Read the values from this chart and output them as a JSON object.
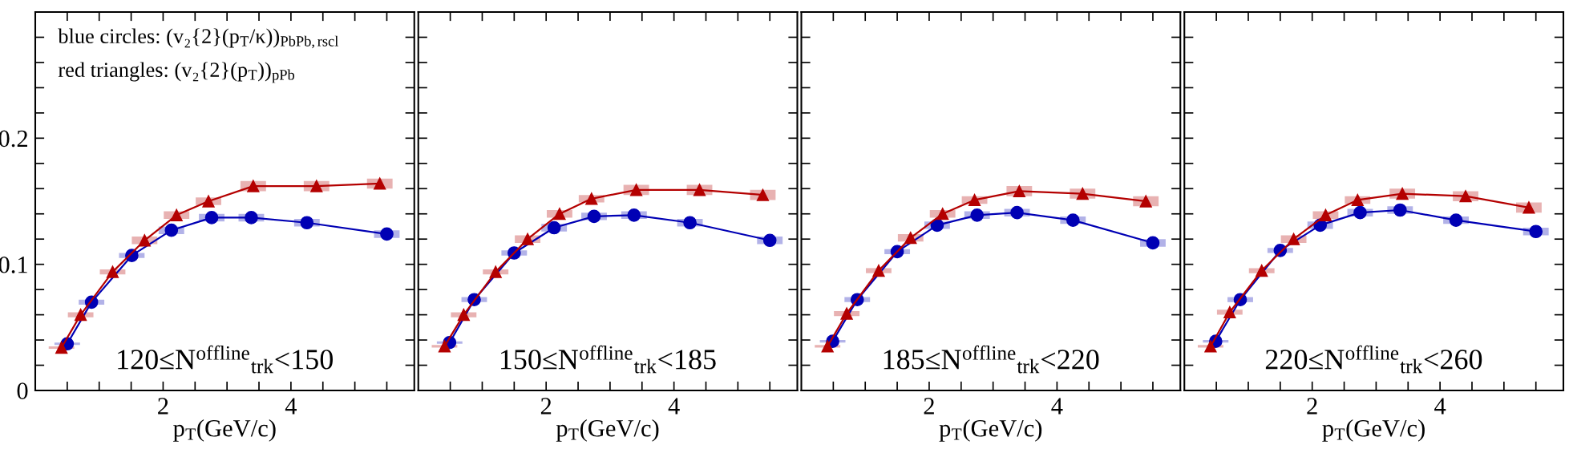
{
  "chart_data": [
    {
      "type": "line",
      "xlabel": "p$_{T}$(GeV/c)",
      "xlim": [
        0,
        5.93
      ],
      "ylim": [
        0,
        0.3
      ],
      "xticks": [
        {
          "value": 0.5,
          "label": null
        },
        {
          "value": 1,
          "label": null
        },
        {
          "value": 1.5,
          "label": null
        },
        2,
        {
          "value": 2.5,
          "label": null
        },
        {
          "value": 3,
          "label": null
        },
        {
          "value": 3.5,
          "label": null
        },
        4,
        {
          "value": 4.5,
          "label": null
        },
        {
          "value": 5,
          "label": null
        },
        {
          "value": 5.5,
          "label": null
        }
      ],
      "yticks": [
        0,
        {
          "value": 0.02,
          "label": null
        },
        {
          "value": 0.04,
          "label": null
        },
        {
          "value": 0.06,
          "label": null
        },
        {
          "value": 0.08,
          "label": null
        },
        0.1,
        {
          "value": 0.12,
          "label": null
        },
        {
          "value": 0.14,
          "label": null
        },
        {
          "value": 0.16,
          "label": null
        },
        {
          "value": 0.18,
          "label": null
        },
        0.2,
        {
          "value": 0.22,
          "label": null
        },
        {
          "value": 0.24,
          "label": null
        },
        {
          "value": 0.26,
          "label": null
        },
        {
          "value": 0.28,
          "label": null
        }
      ],
      "annotations": [
        "blue circles: (v₂{2}(p$_{T}$/κ))$_{PbPb,rscl}$",
        "red triangles: (v₂{2}(p$_{T}$))$_{pPb}$",
        "120≤N$^{offline}$$_{trk}$<150"
      ],
      "series": [
        {
          "color": "#0000b4",
          "marker": "circle",
          "x": [
            0.5,
            0.88,
            1.51,
            2.13,
            2.76,
            3.38,
            4.25,
            5.5
          ],
          "values": [
            0.037,
            0.07,
            0.107,
            0.127,
            0.137,
            0.137,
            0.133,
            0.124
          ],
          "errors": [
            0.001,
            0.002,
            0.002,
            0.003,
            0.003,
            0.003,
            0.003,
            0.003
          ]
        },
        {
          "color": "#b40000",
          "marker": "triangle",
          "x": [
            0.41,
            0.71,
            1.21,
            1.71,
            2.21,
            2.71,
            3.41,
            4.4,
            5.39
          ],
          "values": [
            0.034,
            0.06,
            0.094,
            0.119,
            0.139,
            0.15,
            0.162,
            0.162,
            0.164
          ],
          "errors": [
            0.001,
            0.002,
            0.002,
            0.003,
            0.003,
            0.003,
            0.004,
            0.004,
            0.004
          ]
        }
      ]
    },
    {
      "type": "line",
      "xlabel": "p$_{T}$(GeV/c)",
      "xlim": [
        0,
        5.93
      ],
      "ylim": [
        0,
        0.3
      ],
      "tick_labels": "x",
      "xticks": [
        {
          "value": 0.5,
          "label": null
        },
        {
          "value": 1,
          "label": null
        },
        {
          "value": 1.5,
          "label": null
        },
        2,
        {
          "value": 2.5,
          "label": null
        },
        {
          "value": 3,
          "label": null
        },
        {
          "value": 3.5,
          "label": null
        },
        4,
        {
          "value": 4.5,
          "label": null
        },
        {
          "value": 5,
          "label": null
        },
        {
          "value": 5.5,
          "label": null
        }
      ],
      "yticks": [
        0,
        {
          "value": 0.02,
          "label": null
        },
        {
          "value": 0.04,
          "label": null
        },
        {
          "value": 0.06,
          "label": null
        },
        {
          "value": 0.08,
          "label": null
        },
        0.1,
        {
          "value": 0.12,
          "label": null
        },
        {
          "value": 0.14,
          "label": null
        },
        {
          "value": 0.16,
          "label": null
        },
        {
          "value": 0.18,
          "label": null
        },
        0.2,
        {
          "value": 0.22,
          "label": null
        },
        {
          "value": 0.24,
          "label": null
        },
        {
          "value": 0.26,
          "label": null
        },
        {
          "value": 0.28,
          "label": null
        }
      ],
      "annotations": [
        "150≤N$^{offline}$$_{trk}$<185"
      ],
      "series": [
        {
          "color": "#0000b4",
          "marker": "circle",
          "x": [
            0.49,
            0.875,
            1.5,
            2.125,
            2.75,
            3.375,
            4.25,
            5.5
          ],
          "values": [
            0.038,
            0.072,
            0.109,
            0.129,
            0.138,
            0.139,
            0.133,
            0.119
          ],
          "errors": [
            0.001,
            0.002,
            0.002,
            0.003,
            0.003,
            0.003,
            0.003,
            0.003
          ]
        },
        {
          "color": "#b40000",
          "marker": "triangle",
          "x": [
            0.41,
            0.71,
            1.21,
            1.71,
            2.21,
            2.71,
            3.41,
            4.4,
            5.39
          ],
          "values": [
            0.035,
            0.06,
            0.094,
            0.12,
            0.14,
            0.152,
            0.159,
            0.159,
            0.155
          ],
          "errors": [
            0.001,
            0.002,
            0.002,
            0.003,
            0.003,
            0.003,
            0.004,
            0.004,
            0.004
          ]
        }
      ]
    },
    {
      "type": "line",
      "xlabel": "p$_{T}$(GeV/c)",
      "xlim": [
        0,
        5.93
      ],
      "ylim": [
        0,
        0.3
      ],
      "tick_labels": "x",
      "xticks": [
        {
          "value": 0.5,
          "label": null
        },
        {
          "value": 1,
          "label": null
        },
        {
          "value": 1.5,
          "label": null
        },
        2,
        {
          "value": 2.5,
          "label": null
        },
        {
          "value": 3,
          "label": null
        },
        {
          "value": 3.5,
          "label": null
        },
        4,
        {
          "value": 4.5,
          "label": null
        },
        {
          "value": 5,
          "label": null
        },
        {
          "value": 5.5,
          "label": null
        }
      ],
      "yticks": [
        0,
        {
          "value": 0.02,
          "label": null
        },
        {
          "value": 0.04,
          "label": null
        },
        {
          "value": 0.06,
          "label": null
        },
        {
          "value": 0.08,
          "label": null
        },
        0.1,
        {
          "value": 0.12,
          "label": null
        },
        {
          "value": 0.14,
          "label": null
        },
        {
          "value": 0.16,
          "label": null
        },
        {
          "value": 0.18,
          "label": null
        },
        0.2,
        {
          "value": 0.22,
          "label": null
        },
        {
          "value": 0.24,
          "label": null
        },
        {
          "value": 0.26,
          "label": null
        },
        {
          "value": 0.28,
          "label": null
        }
      ],
      "annotations": [
        "185≤N$^{offline}$$_{trk}$<220"
      ],
      "series": [
        {
          "color": "#0000b4",
          "marker": "circle",
          "x": [
            0.49,
            0.875,
            1.5,
            2.125,
            2.75,
            3.375,
            4.25,
            5.5
          ],
          "values": [
            0.039,
            0.072,
            0.11,
            0.131,
            0.139,
            0.141,
            0.135,
            0.117
          ],
          "errors": [
            0.001,
            0.002,
            0.002,
            0.003,
            0.003,
            0.003,
            0.003,
            0.003
          ]
        },
        {
          "color": "#b40000",
          "marker": "triangle",
          "x": [
            0.41,
            0.71,
            1.21,
            1.71,
            2.21,
            2.71,
            3.41,
            4.4,
            5.39
          ],
          "values": [
            0.035,
            0.061,
            0.095,
            0.121,
            0.14,
            0.151,
            0.158,
            0.156,
            0.15
          ],
          "errors": [
            0.001,
            0.002,
            0.002,
            0.003,
            0.003,
            0.003,
            0.004,
            0.004,
            0.004
          ]
        }
      ]
    },
    {
      "type": "line",
      "xlabel": "p$_{T}$(GeV/c)",
      "xlim": [
        0,
        5.93
      ],
      "ylim": [
        0,
        0.3
      ],
      "tick_labels": "x",
      "xticks": [
        {
          "value": 0.5,
          "label": null
        },
        {
          "value": 1,
          "label": null
        },
        {
          "value": 1.5,
          "label": null
        },
        2,
        {
          "value": 2.5,
          "label": null
        },
        {
          "value": 3,
          "label": null
        },
        {
          "value": 3.5,
          "label": null
        },
        4,
        {
          "value": 4.5,
          "label": null
        },
        {
          "value": 5,
          "label": null
        },
        {
          "value": 5.5,
          "label": null
        }
      ],
      "yticks": [
        0,
        {
          "value": 0.02,
          "label": null
        },
        {
          "value": 0.04,
          "label": null
        },
        {
          "value": 0.06,
          "label": null
        },
        {
          "value": 0.08,
          "label": null
        },
        0.1,
        {
          "value": 0.12,
          "label": null
        },
        {
          "value": 0.14,
          "label": null
        },
        {
          "value": 0.16,
          "label": null
        },
        {
          "value": 0.18,
          "label": null
        },
        0.2,
        {
          "value": 0.22,
          "label": null
        },
        {
          "value": 0.24,
          "label": null
        },
        {
          "value": 0.26,
          "label": null
        },
        {
          "value": 0.28,
          "label": null
        }
      ],
      "annotations": [
        "220≤N$^{offline}$$_{trk}$<260"
      ],
      "series": [
        {
          "color": "#0000b4",
          "marker": "circle",
          "x": [
            0.49,
            0.875,
            1.5,
            2.125,
            2.75,
            3.375,
            4.25,
            5.5
          ],
          "values": [
            0.039,
            0.072,
            0.111,
            0.131,
            0.141,
            0.143,
            0.135,
            0.126
          ],
          "errors": [
            0.001,
            0.002,
            0.002,
            0.003,
            0.003,
            0.003,
            0.003,
            0.003
          ]
        },
        {
          "color": "#b40000",
          "marker": "triangle",
          "x": [
            0.41,
            0.71,
            1.21,
            1.71,
            2.21,
            2.71,
            3.41,
            4.4,
            5.39
          ],
          "values": [
            0.035,
            0.062,
            0.095,
            0.12,
            0.139,
            0.151,
            0.156,
            0.154,
            0.145
          ],
          "errors": [
            0.001,
            0.002,
            0.002,
            0.003,
            0.003,
            0.003,
            0.004,
            0.004,
            0.004
          ]
        }
      ]
    }
  ]
}
